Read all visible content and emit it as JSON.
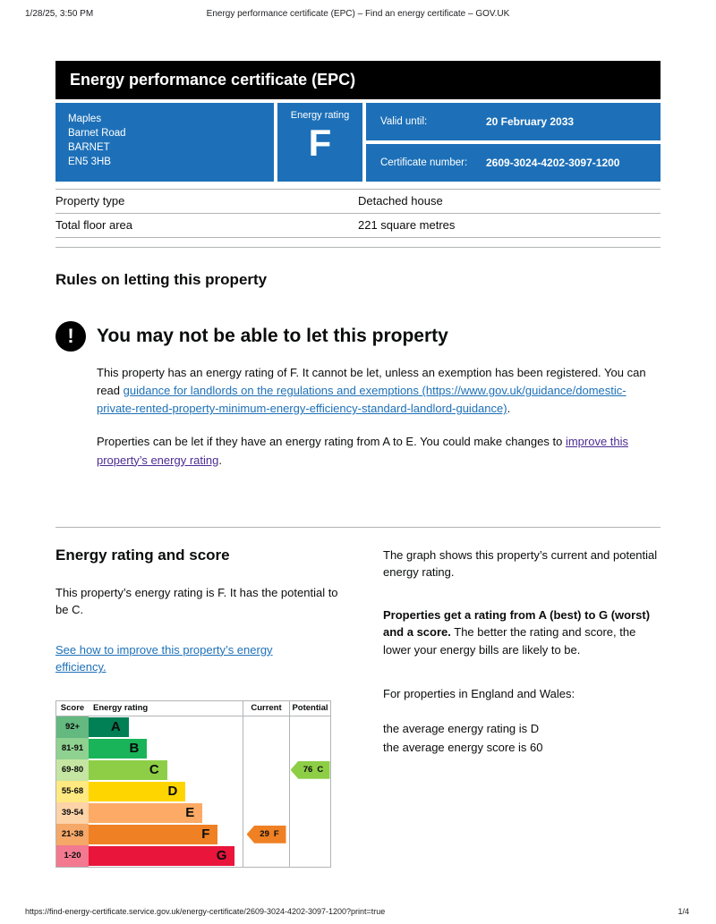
{
  "print_header": {
    "timestamp": "1/28/25, 3:50 PM",
    "title": "Energy performance certificate (EPC) – Find an energy certificate – GOV.UK"
  },
  "banner": {
    "title": "Energy performance certificate (EPC)"
  },
  "summary": {
    "address_lines": [
      "Maples",
      "Barnet Road",
      "BARNET",
      "EN5 3HB"
    ],
    "energy_rating_label": "Energy rating",
    "energy_rating": "F",
    "valid_until_label": "Valid until:",
    "valid_until": "20 February 2033",
    "certificate_number_label": "Certificate number:",
    "certificate_number": "2609-3024-4202-3097-1200"
  },
  "colors": {
    "govuk_blue": "#1d70b8",
    "banner_black": "#000000",
    "link_blue": "#1d70b8",
    "link_purple": "#4c2c92",
    "border_grey": "#b1b4b6"
  },
  "property_details": {
    "rows": [
      {
        "label": "Property type",
        "value": "Detached house"
      },
      {
        "label": "Total floor area",
        "value": "221 square metres"
      }
    ]
  },
  "rules": {
    "heading": "Rules on letting this property",
    "warning_icon": "!",
    "warning_heading": "You may not be able to let this property",
    "para1_before": "This property has an energy rating of F. It cannot be let, unless an exemption has been registered. You can read ",
    "para1_link": "guidance for landlords on the regulations and exemptions (https://www.gov.uk/guidance/domestic-private-rented-property-minimum-energy-efficiency-standard-landlord-guidance)",
    "para1_after": ".",
    "para2_before": "Properties can be let if they have an energy rating from A to E. You could make changes to ",
    "para2_link": "improve this property’s energy rating",
    "para2_after": "."
  },
  "rating_section": {
    "heading": "Energy rating and score",
    "intro": "This property’s energy rating is F. It has the potential to be C.",
    "improve_link": "See how to improve this property’s energy efficiency.",
    "right_para1": "The graph shows this property’s current and potential energy rating.",
    "right_para2_bold": "Properties get a rating from A (best) to G (worst) and a score.",
    "right_para2_rest": " The better the rating and score, the lower your energy bills are likely to be.",
    "right_para3": "For properties in England and Wales:",
    "right_para4": "the average energy rating is D",
    "right_para5": "the average energy score is 60"
  },
  "chart_data": {
    "type": "bar",
    "title": "Energy rating and score",
    "headers": {
      "score": "Score",
      "rating": "Energy rating",
      "current": "Current",
      "potential": "Potential"
    },
    "bands": [
      {
        "score": "92+",
        "letter": "A",
        "color": "#008054",
        "tint": "#63b980",
        "width_pct": 26
      },
      {
        "score": "81-91",
        "letter": "B",
        "color": "#19b459",
        "tint": "#8fd190",
        "width_pct": 38
      },
      {
        "score": "69-80",
        "letter": "C",
        "color": "#8dce46",
        "tint": "#c5e6a2",
        "width_pct": 51
      },
      {
        "score": "55-68",
        "letter": "D",
        "color": "#ffd500",
        "tint": "#ffe980",
        "width_pct": 63
      },
      {
        "score": "39-54",
        "letter": "E",
        "color": "#fcaa65",
        "tint": "#fdd3a8",
        "width_pct": 74
      },
      {
        "score": "21-38",
        "letter": "F",
        "color": "#ef8023",
        "tint": "#f5a868",
        "width_pct": 84
      },
      {
        "score": "1-20",
        "letter": "G",
        "color": "#e9153b",
        "tint": "#f2798f",
        "width_pct": 95
      }
    ],
    "current": {
      "score": "29",
      "letter": "F",
      "color": "#ef8023",
      "band_index": 5
    },
    "potential": {
      "score": "76",
      "letter": "C",
      "color": "#8dce46",
      "band_index": 2
    }
  },
  "footer": {
    "url": "https://find-energy-certificate.service.gov.uk/energy-certificate/2609-3024-4202-3097-1200?print=true",
    "page": "1/4"
  }
}
